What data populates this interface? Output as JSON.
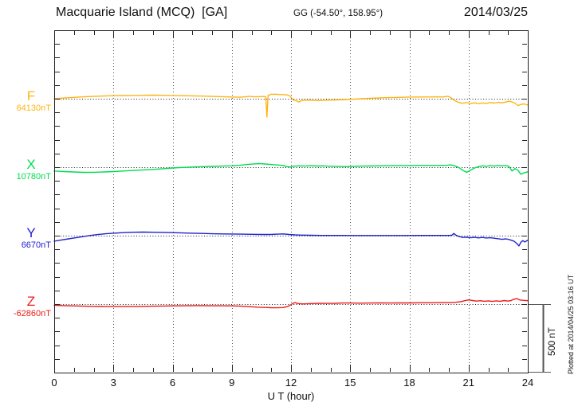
{
  "chart_data": {
    "type": "line",
    "title": "Macquarie Island (MCQ)  [GA]",
    "coords_label": "GG (-54.50°, 158.95°)",
    "date": "2014/03/25",
    "xlabel": "U T (hour)",
    "x_range": [
      0,
      24
    ],
    "x_ticks": [
      0,
      3,
      6,
      9,
      12,
      15,
      18,
      21,
      24
    ],
    "grid": "dotted vertical gridlines every 3 hours; dotted horizontal baseline per trace",
    "legend_position": "left margin, one colored label per trace",
    "scale_bar": {
      "label": "500 nT",
      "span_nT": 500
    },
    "footer": "Plotted at 2014/04/25 03:16 UT",
    "units": "points are [hour UT, deviation in nT from the labelled baseline]",
    "series": [
      {
        "name": "F",
        "baseline_label": "64130nT",
        "baseline_nT": 64130,
        "color": "#FFB414",
        "points": [
          [
            0,
            0
          ],
          [
            0.5,
            5
          ],
          [
            1,
            10
          ],
          [
            1.5,
            14
          ],
          [
            2,
            17
          ],
          [
            2.5,
            20
          ],
          [
            3,
            22
          ],
          [
            3.5,
            23
          ],
          [
            4,
            24
          ],
          [
            4.5,
            25
          ],
          [
            5,
            26
          ],
          [
            5.5,
            25
          ],
          [
            6,
            24
          ],
          [
            6.5,
            22
          ],
          [
            7,
            21
          ],
          [
            7.5,
            19
          ],
          [
            8,
            17
          ],
          [
            8.5,
            15
          ],
          [
            9,
            13
          ],
          [
            9.4,
            11
          ],
          [
            9.7,
            14
          ],
          [
            9.9,
            18
          ],
          [
            10.1,
            14
          ],
          [
            10.4,
            15
          ],
          [
            10.6,
            16
          ],
          [
            10.72,
            15
          ],
          [
            10.78,
            -133
          ],
          [
            10.84,
            25
          ],
          [
            11,
            32
          ],
          [
            11.2,
            33
          ],
          [
            11.4,
            31
          ],
          [
            11.6,
            30
          ],
          [
            11.8,
            28
          ],
          [
            11.95,
            20
          ],
          [
            12.1,
            -8
          ],
          [
            12.25,
            -14
          ],
          [
            12.4,
            -24
          ],
          [
            12.55,
            -12
          ],
          [
            12.8,
            -10
          ],
          [
            13.1,
            -12
          ],
          [
            13.4,
            -14
          ],
          [
            13.7,
            -11
          ],
          [
            14,
            -10
          ],
          [
            14.4,
            -8
          ],
          [
            14.8,
            -6
          ],
          [
            15.2,
            -3
          ],
          [
            15.6,
            0
          ],
          [
            16,
            3
          ],
          [
            16.5,
            6
          ],
          [
            17,
            8
          ],
          [
            17.5,
            10
          ],
          [
            18,
            12
          ],
          [
            18.5,
            13
          ],
          [
            19,
            13
          ],
          [
            19.4,
            14
          ],
          [
            19.7,
            13
          ],
          [
            19.95,
            18
          ],
          [
            20.1,
            8
          ],
          [
            20.3,
            -14
          ],
          [
            20.5,
            -28
          ],
          [
            20.7,
            -33
          ],
          [
            20.9,
            -28
          ],
          [
            21.1,
            -35
          ],
          [
            21.3,
            -30
          ],
          [
            21.5,
            -36
          ],
          [
            21.7,
            -31
          ],
          [
            21.9,
            -34
          ],
          [
            22.1,
            -28
          ],
          [
            22.3,
            -32
          ],
          [
            22.5,
            -26
          ],
          [
            22.7,
            -30
          ],
          [
            22.9,
            -24
          ],
          [
            23.05,
            -18
          ],
          [
            23.2,
            -24
          ],
          [
            23.35,
            -32
          ],
          [
            23.5,
            -50
          ],
          [
            23.65,
            -42
          ],
          [
            23.8,
            -38
          ],
          [
            24,
            -46
          ]
        ]
      },
      {
        "name": "X",
        "baseline_label": "10780nT",
        "baseline_nT": 10780,
        "color": "#00DC50",
        "points": [
          [
            0,
            -28
          ],
          [
            0.5,
            -32
          ],
          [
            1,
            -35
          ],
          [
            1.5,
            -38
          ],
          [
            2,
            -37
          ],
          [
            2.5,
            -35
          ],
          [
            3,
            -32
          ],
          [
            3.5,
            -28
          ],
          [
            4,
            -24
          ],
          [
            4.5,
            -20
          ],
          [
            5,
            -16
          ],
          [
            5.5,
            -11
          ],
          [
            6,
            -6
          ],
          [
            6.5,
            -2
          ],
          [
            7,
            1
          ],
          [
            7.5,
            4
          ],
          [
            8,
            6
          ],
          [
            8.5,
            8
          ],
          [
            9,
            10
          ],
          [
            9.4,
            14
          ],
          [
            9.8,
            20
          ],
          [
            10.1,
            24
          ],
          [
            10.4,
            26
          ],
          [
            10.7,
            23
          ],
          [
            11,
            19
          ],
          [
            11.3,
            16
          ],
          [
            11.6,
            13
          ],
          [
            11.8,
            4
          ],
          [
            11.95,
            2
          ],
          [
            12.1,
            7
          ],
          [
            12.4,
            10
          ],
          [
            12.7,
            8
          ],
          [
            13,
            11
          ],
          [
            13.3,
            9
          ],
          [
            13.6,
            10
          ],
          [
            14,
            7
          ],
          [
            14.4,
            5
          ],
          [
            14.8,
            4
          ],
          [
            15.2,
            6
          ],
          [
            15.6,
            8
          ],
          [
            16,
            9
          ],
          [
            16.5,
            10
          ],
          [
            17,
            11
          ],
          [
            17.5,
            12
          ],
          [
            18,
            12
          ],
          [
            18.5,
            13
          ],
          [
            19,
            13
          ],
          [
            19.5,
            13
          ],
          [
            19.9,
            14
          ],
          [
            20.1,
            17
          ],
          [
            20.3,
            10
          ],
          [
            20.5,
            -2
          ],
          [
            20.7,
            -22
          ],
          [
            20.9,
            -38
          ],
          [
            21.1,
            -22
          ],
          [
            21.3,
            -6
          ],
          [
            21.5,
            4
          ],
          [
            21.7,
            10
          ],
          [
            21.9,
            6
          ],
          [
            22.1,
            12
          ],
          [
            22.3,
            8
          ],
          [
            22.5,
            13
          ],
          [
            22.7,
            10
          ],
          [
            22.9,
            12
          ],
          [
            23.05,
            6
          ],
          [
            23.2,
            -28
          ],
          [
            23.35,
            -10
          ],
          [
            23.5,
            -22
          ],
          [
            23.65,
            -52
          ],
          [
            23.8,
            -42
          ],
          [
            24,
            -34
          ]
        ]
      },
      {
        "name": "Y",
        "baseline_label": "6670nT",
        "baseline_nT": 6670,
        "color": "#2222CD",
        "points": [
          [
            0,
            -40
          ],
          [
            0.3,
            -33
          ],
          [
            0.6,
            -26
          ],
          [
            1,
            -17
          ],
          [
            1.4,
            -8
          ],
          [
            1.8,
            1
          ],
          [
            2.2,
            8
          ],
          [
            2.6,
            14
          ],
          [
            3,
            18
          ],
          [
            3.5,
            22
          ],
          [
            4,
            25
          ],
          [
            4.5,
            26
          ],
          [
            5,
            25
          ],
          [
            5.5,
            24
          ],
          [
            6,
            22
          ],
          [
            6.5,
            20
          ],
          [
            7,
            18
          ],
          [
            7.5,
            16
          ],
          [
            8,
            14
          ],
          [
            8.5,
            13
          ],
          [
            9,
            12
          ],
          [
            9.5,
            11
          ],
          [
            10,
            10
          ],
          [
            10.5,
            9
          ],
          [
            11,
            9
          ],
          [
            11.3,
            11
          ],
          [
            11.6,
            13
          ],
          [
            11.9,
            9
          ],
          [
            12.2,
            6
          ],
          [
            12.5,
            4
          ],
          [
            13,
            3
          ],
          [
            13.5,
            2
          ],
          [
            14,
            2
          ],
          [
            14.5,
            2
          ],
          [
            15,
            1
          ],
          [
            15.5,
            1
          ],
          [
            16,
            1
          ],
          [
            16.5,
            1
          ],
          [
            17,
            1
          ],
          [
            17.5,
            1
          ],
          [
            18,
            1
          ],
          [
            18.5,
            2
          ],
          [
            19,
            2
          ],
          [
            19.5,
            2
          ],
          [
            20,
            2
          ],
          [
            20.15,
            3
          ],
          [
            20.25,
            16
          ],
          [
            20.35,
            4
          ],
          [
            20.5,
            -6
          ],
          [
            20.7,
            -13
          ],
          [
            20.9,
            -11
          ],
          [
            21.1,
            -15
          ],
          [
            21.3,
            -12
          ],
          [
            21.5,
            -16
          ],
          [
            21.7,
            -13
          ],
          [
            21.9,
            -17
          ],
          [
            22.1,
            -15
          ],
          [
            22.4,
            -21
          ],
          [
            22.7,
            -27
          ],
          [
            22.9,
            -23
          ],
          [
            23.1,
            -30
          ],
          [
            23.3,
            -40
          ],
          [
            23.45,
            -58
          ],
          [
            23.55,
            -75
          ],
          [
            23.65,
            -48
          ],
          [
            23.75,
            -36
          ],
          [
            23.85,
            -46
          ],
          [
            24,
            -33
          ]
        ]
      },
      {
        "name": "Z",
        "baseline_label": "-62860nT",
        "baseline_nT": -62860,
        "color": "#EE1A1A",
        "points": [
          [
            0,
            -8
          ],
          [
            0.5,
            -11
          ],
          [
            1,
            -13
          ],
          [
            1.5,
            -15
          ],
          [
            2,
            -16
          ],
          [
            2.5,
            -17
          ],
          [
            3,
            -17
          ],
          [
            3.5,
            -17
          ],
          [
            4,
            -17
          ],
          [
            4.5,
            -16
          ],
          [
            5,
            -15
          ],
          [
            5.5,
            -14
          ],
          [
            6,
            -13
          ],
          [
            6.5,
            -12
          ],
          [
            7,
            -11
          ],
          [
            7.5,
            -11
          ],
          [
            8,
            -12
          ],
          [
            8.5,
            -12
          ],
          [
            9,
            -13
          ],
          [
            9.5,
            -15
          ],
          [
            10,
            -19
          ],
          [
            10.3,
            -22
          ],
          [
            10.6,
            -24
          ],
          [
            11,
            -26
          ],
          [
            11.3,
            -27
          ],
          [
            11.6,
            -25
          ],
          [
            11.85,
            -16
          ],
          [
            12,
            -4
          ],
          [
            12.1,
            6
          ],
          [
            12.2,
            11
          ],
          [
            12.35,
            4
          ],
          [
            12.6,
            2
          ],
          [
            13,
            4
          ],
          [
            13.4,
            6
          ],
          [
            13.8,
            5
          ],
          [
            14.2,
            6
          ],
          [
            14.6,
            8
          ],
          [
            15,
            8
          ],
          [
            15.5,
            7
          ],
          [
            16,
            8
          ],
          [
            16.5,
            9
          ],
          [
            17,
            8
          ],
          [
            17.5,
            9
          ],
          [
            18,
            9
          ],
          [
            18.5,
            10
          ],
          [
            19,
            10
          ],
          [
            19.5,
            11
          ],
          [
            20,
            11
          ],
          [
            20.3,
            13
          ],
          [
            20.6,
            18
          ],
          [
            20.8,
            25
          ],
          [
            21,
            31
          ],
          [
            21.2,
            26
          ],
          [
            21.4,
            22
          ],
          [
            21.6,
            25
          ],
          [
            21.8,
            21
          ],
          [
            22,
            24
          ],
          [
            22.2,
            20
          ],
          [
            22.4,
            24
          ],
          [
            22.6,
            21
          ],
          [
            22.8,
            26
          ],
          [
            23,
            22
          ],
          [
            23.15,
            26
          ],
          [
            23.3,
            36
          ],
          [
            23.45,
            40
          ],
          [
            23.6,
            30
          ],
          [
            23.75,
            28
          ],
          [
            24,
            25
          ]
        ]
      }
    ]
  }
}
